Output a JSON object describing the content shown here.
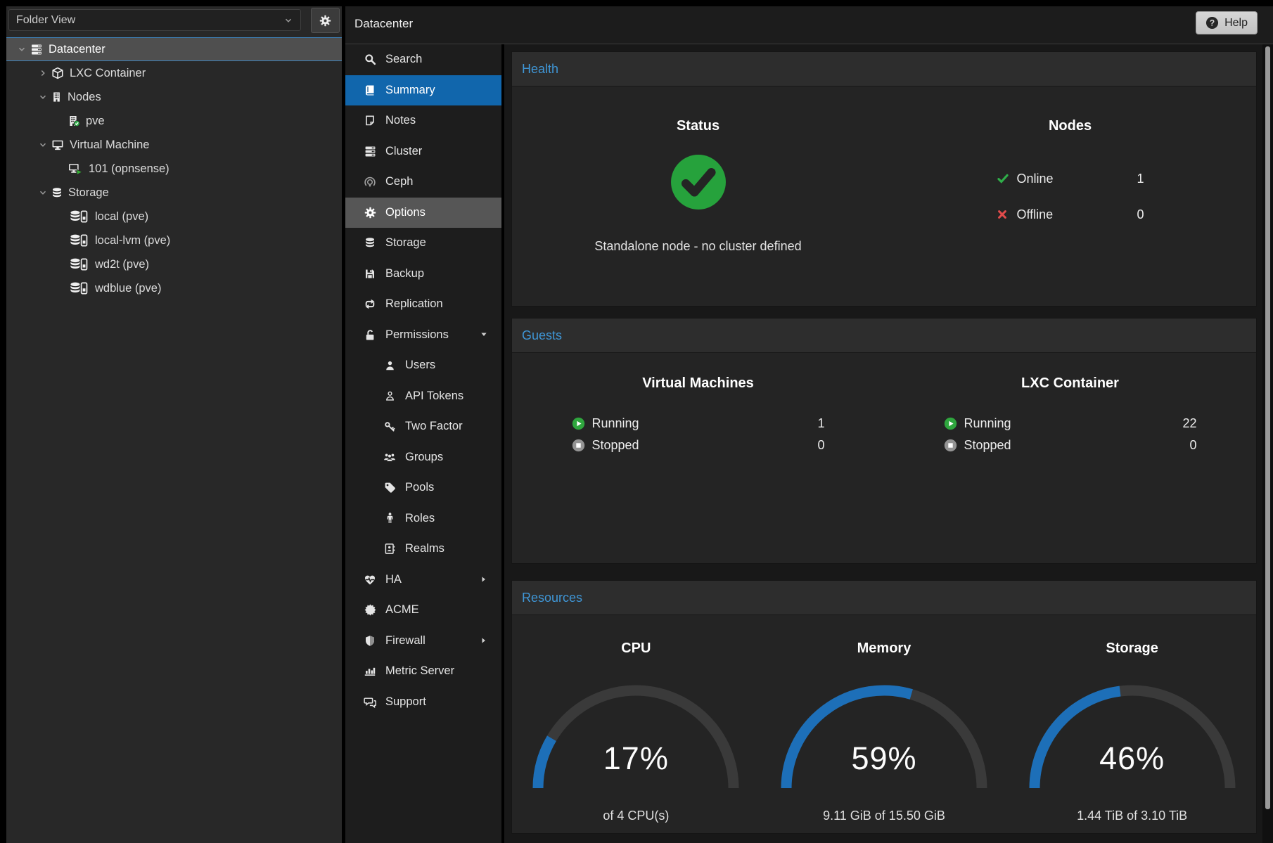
{
  "sidebar": {
    "view_selector": "Folder View",
    "tree": [
      {
        "label": "Datacenter",
        "icon": "server-icon",
        "level": 0,
        "expander": "expanded",
        "selected": true
      },
      {
        "label": "LXC Container",
        "icon": "cube-icon",
        "level": 1,
        "expander": "collapsed"
      },
      {
        "label": "Nodes",
        "icon": "building-icon",
        "level": 1,
        "expander": "expanded"
      },
      {
        "label": "pve",
        "icon": "building-check-icon",
        "level": 2
      },
      {
        "label": "Virtual Machine",
        "icon": "desktop-icon",
        "level": 1,
        "expander": "expanded"
      },
      {
        "label": "101 (opnsense)",
        "icon": "desktop-play-icon",
        "level": 2
      },
      {
        "label": "Storage",
        "icon": "database-icon",
        "level": 1,
        "expander": "expanded"
      },
      {
        "label": "local (pve)",
        "icon": "database-disk-icon",
        "level": 2
      },
      {
        "label": "local-lvm (pve)",
        "icon": "database-disk-icon",
        "level": 2
      },
      {
        "label": "wd2t (pve)",
        "icon": "database-disk-icon",
        "level": 2
      },
      {
        "label": "wdblue (pve)",
        "icon": "database-disk-icon",
        "level": 2
      }
    ]
  },
  "nav": {
    "title": "Datacenter",
    "items": [
      {
        "label": "Search",
        "icon": "search-icon",
        "level": 0
      },
      {
        "label": "Summary",
        "icon": "book-icon",
        "level": 0,
        "selected": true
      },
      {
        "label": "Notes",
        "icon": "note-icon",
        "level": 0
      },
      {
        "label": "Cluster",
        "icon": "cluster-icon",
        "level": 0
      },
      {
        "label": "Ceph",
        "icon": "ceph-icon",
        "level": 0,
        "dim": true
      },
      {
        "label": "Options",
        "icon": "gear-icon",
        "level": 0,
        "hover": true
      },
      {
        "label": "Storage",
        "icon": "database-icon",
        "level": 0
      },
      {
        "label": "Backup",
        "icon": "floppy-icon",
        "level": 0
      },
      {
        "label": "Replication",
        "icon": "sync-icon",
        "level": 0
      },
      {
        "label": "Permissions",
        "icon": "unlock-icon",
        "level": 0,
        "caret": "down"
      },
      {
        "label": "Users",
        "icon": "user-icon",
        "level": 1
      },
      {
        "label": "API Tokens",
        "icon": "user-outline-icon",
        "level": 1
      },
      {
        "label": "Two Factor",
        "icon": "key-icon",
        "level": 1
      },
      {
        "label": "Groups",
        "icon": "users-icon",
        "level": 1
      },
      {
        "label": "Pools",
        "icon": "tag-icon",
        "level": 1
      },
      {
        "label": "Roles",
        "icon": "person-icon",
        "level": 1
      },
      {
        "label": "Realms",
        "icon": "address-book-icon",
        "level": 1
      },
      {
        "label": "HA",
        "icon": "heartbeat-icon",
        "level": 0,
        "caret": "right"
      },
      {
        "label": "ACME",
        "icon": "seal-icon",
        "level": 0
      },
      {
        "label": "Firewall",
        "icon": "shield-icon",
        "level": 0,
        "caret": "right"
      },
      {
        "label": "Metric Server",
        "icon": "chart-bar-icon",
        "level": 0
      },
      {
        "label": "Support",
        "icon": "comments-icon",
        "level": 0
      }
    ]
  },
  "header": {
    "help_label": "Help"
  },
  "content": {
    "health": {
      "title": "Health",
      "status": {
        "heading": "Status",
        "icon": "check-circle-icon",
        "message": "Standalone node - no cluster defined"
      },
      "nodes": {
        "heading": "Nodes",
        "rows": [
          {
            "icon": "check-green-icon",
            "label": "Online",
            "value": "1"
          },
          {
            "icon": "cross-red-icon",
            "label": "Offline",
            "value": "0"
          }
        ]
      }
    },
    "guests": {
      "title": "Guests",
      "columns": [
        {
          "heading": "Virtual Machines",
          "rows": [
            {
              "icon": "play-circle-icon",
              "label": "Running",
              "value": "1"
            },
            {
              "icon": "stop-circle-icon",
              "label": "Stopped",
              "value": "0"
            }
          ]
        },
        {
          "heading": "LXC Container",
          "rows": [
            {
              "icon": "play-circle-icon",
              "label": "Running",
              "value": "22"
            },
            {
              "icon": "stop-circle-icon",
              "label": "Stopped",
              "value": "0"
            }
          ]
        }
      ]
    },
    "resources": {
      "title": "Resources",
      "gauges": [
        {
          "heading": "CPU",
          "percent": 17,
          "label": "17%",
          "sub": "of 4 CPU(s)"
        },
        {
          "heading": "Memory",
          "percent": 59,
          "label": "59%",
          "sub": "9.11 GiB of 15.50 GiB"
        },
        {
          "heading": "Storage",
          "percent": 46,
          "label": "46%",
          "sub": "1.44 TiB of 3.10 TiB"
        }
      ]
    }
  },
  "colors": {
    "accent_blue": "#3f96d6",
    "selection_blue": "#1166ac",
    "gauge_blue": "#1d6fb8",
    "gauge_track": "#3a3a3a",
    "ok_green": "#27a23c",
    "error_red": "#e14b4b"
  }
}
